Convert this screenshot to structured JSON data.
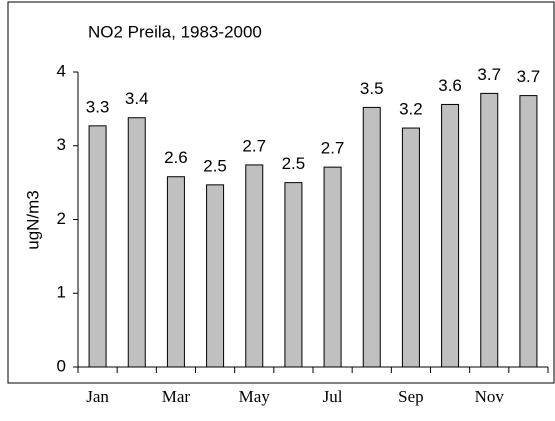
{
  "chart_data": {
    "type": "bar",
    "title": "NO2 Preila, 1983-2000",
    "y_label": "ugN/m3",
    "categories": [
      "Jan",
      null,
      "Mar",
      null,
      "May",
      null,
      "Jul",
      null,
      "Sep",
      null,
      "Nov",
      null
    ],
    "values": [
      3.27,
      3.38,
      2.58,
      2.47,
      2.74,
      2.5,
      2.71,
      3.52,
      3.24,
      3.56,
      3.71,
      3.68
    ],
    "value_labels": [
      "3.3",
      "3.4",
      "2.6",
      "2.5",
      "2.7",
      "2.5",
      "2.7",
      "3.5",
      "3.2",
      "3.6",
      "3.7",
      "3.7"
    ],
    "color": "#c0c0c0",
    "ylim": [
      0,
      4
    ],
    "yticks": [
      0,
      1,
      2,
      3,
      4
    ],
    "grid": false
  }
}
